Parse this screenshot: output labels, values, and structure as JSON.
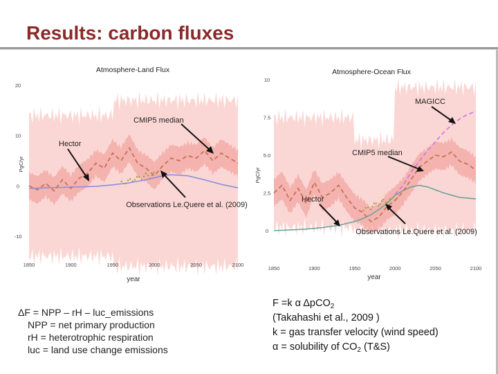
{
  "slide": {
    "title": "Results: carbon fluxes",
    "left_equations": {
      "line1": "ΔF = NPP – rH – luc_emissions",
      "line2": "NPP = net primary production",
      "line3": "rH = heterotrophic respiration",
      "line4": "luc = land use change emissions"
    },
    "right_equations": {
      "line1_a": "F =k α Δp",
      "line1_b": "CO",
      "line1_sub": "2",
      "line2": "(Takahashi et al., 2009 )",
      "line3": "k = gas transfer velocity (wind speed)",
      "line4_a": "α = solubility of CO",
      "line4_sub": "2",
      "line4_b": " (T&S)"
    }
  },
  "chart_data": [
    {
      "type": "line",
      "title": "Atmosphere-Land Flux",
      "xlabel": "year",
      "ylabel": "PgC/yr",
      "xlim": [
        1850,
        2100
      ],
      "ylim": [
        -10,
        20
      ],
      "x_ticks": [
        "1850",
        "1900",
        "1950",
        "2000",
        "2050",
        "2100"
      ],
      "y_ticks": [
        "20",
        "10",
        "0",
        "-10"
      ],
      "colors": {
        "hector": "#8c8ce0",
        "cmip5": "#c8705a",
        "obs": "#9a9a40",
        "band": "#f5a6a0"
      },
      "series": [
        {
          "name": "Hector",
          "x": [
            1850,
            1870,
            1890,
            1910,
            1930,
            1950,
            1970,
            1990,
            2000,
            2010,
            2020,
            2040,
            2060,
            2080,
            2100
          ],
          "values": [
            -0.5,
            -0.4,
            -0.3,
            -0.2,
            -0.1,
            0.2,
            0.6,
            1.2,
            1.6,
            2.0,
            2.2,
            2.0,
            1.2,
            0.3,
            -0.4
          ]
        },
        {
          "name": "CMIP5 median",
          "x": [
            1850,
            1860,
            1870,
            1880,
            1890,
            1900,
            1910,
            1920,
            1930,
            1940,
            1950,
            1960,
            1970,
            1980,
            1990,
            2000,
            2010,
            2020,
            2030,
            2040,
            2050,
            2060,
            2070,
            2080,
            2090,
            2100
          ],
          "values": [
            0,
            -0.8,
            0.5,
            -1.0,
            1.2,
            -0.5,
            1.5,
            2.5,
            4.5,
            3.5,
            6.5,
            5.0,
            7.5,
            4.5,
            3.5,
            2.0,
            4.0,
            5.5,
            5.0,
            6.0,
            5.5,
            7.0,
            5.0,
            6.5,
            5.5,
            4.5
          ]
        },
        {
          "name": "Observations Le.Quere et al. (2009)",
          "x": [
            1960,
            1965,
            1970,
            1975,
            1980,
            1985,
            1990,
            1995,
            2000,
            2005
          ],
          "values": [
            1.0,
            0.2,
            1.5,
            0.8,
            2.0,
            1.3,
            2.5,
            1.5,
            2.8,
            2.0
          ]
        }
      ],
      "annotations": [
        "CMIP5 median",
        "Hector",
        "Observations Le.Quere et al. (2009)"
      ]
    },
    {
      "type": "line",
      "title": "Atmosphere-Ocean Flux",
      "xlabel": "year",
      "ylabel": "PgC/yr",
      "xlim": [
        1850,
        2100
      ],
      "ylim": [
        0,
        10
      ],
      "x_ticks": [
        "1850",
        "1900",
        "1950",
        "2000",
        "2050",
        "2100"
      ],
      "y_ticks": [
        "10",
        "7.5",
        "5.0",
        "2.5",
        "0"
      ],
      "colors": {
        "hector": "#6aa39a",
        "cmip5": "#c8705a",
        "magicc": "#d070e8",
        "obs": "#9a9a40",
        "band": "#f5a6a0"
      },
      "series": [
        {
          "name": "Hector",
          "x": [
            1850,
            1870,
            1890,
            1910,
            1930,
            1950,
            1960,
            1970,
            1980,
            1990,
            2000,
            2010,
            2020,
            2030,
            2040,
            2050,
            2060,
            2070,
            2080,
            2090,
            2100
          ],
          "values": [
            0,
            0.05,
            0.1,
            0.2,
            0.35,
            0.6,
            0.8,
            1.05,
            1.4,
            1.8,
            2.35,
            2.65,
            2.9,
            3.0,
            2.9,
            2.7,
            2.5,
            2.35,
            2.2,
            2.15,
            2.1
          ]
        },
        {
          "name": "CMIP5 median",
          "x": [
            1850,
            1860,
            1870,
            1880,
            1890,
            1900,
            1910,
            1920,
            1930,
            1940,
            1950,
            1960,
            1970,
            1980,
            1990,
            2000,
            2010,
            2020,
            2030,
            2040,
            2050,
            2060,
            2070,
            2080,
            2090,
            2100
          ],
          "values": [
            2.5,
            3.0,
            2.0,
            2.8,
            1.8,
            3.2,
            2.2,
            2.5,
            3.0,
            2.2,
            1.5,
            1.2,
            0.6,
            0.9,
            1.6,
            2.0,
            2.6,
            3.4,
            4.2,
            4.6,
            5.0,
            4.9,
            5.2,
            4.6,
            4.4,
            4.0
          ]
        },
        {
          "name": "MAGICC",
          "x": [
            2000,
            2010,
            2020,
            2030,
            2040,
            2050,
            2060,
            2070,
            2080,
            2090,
            2100
          ],
          "values": [
            2.4,
            3.0,
            3.9,
            4.6,
            5.3,
            5.9,
            6.5,
            7.0,
            7.4,
            7.7,
            7.9
          ]
        },
        {
          "name": "Observations Le.Quere et al. (2009)",
          "x": [
            1960,
            1965,
            1970,
            1975,
            1980,
            1985,
            1990,
            1995,
            2000,
            2005
          ],
          "values": [
            1.3,
            1.6,
            1.4,
            1.9,
            1.6,
            2.1,
            1.8,
            2.2,
            2.0,
            2.3
          ]
        }
      ],
      "annotations": [
        "MAGICC",
        "CMIP5 median",
        "Hector",
        "Observations Le.Quere et al. (2009)"
      ]
    }
  ]
}
